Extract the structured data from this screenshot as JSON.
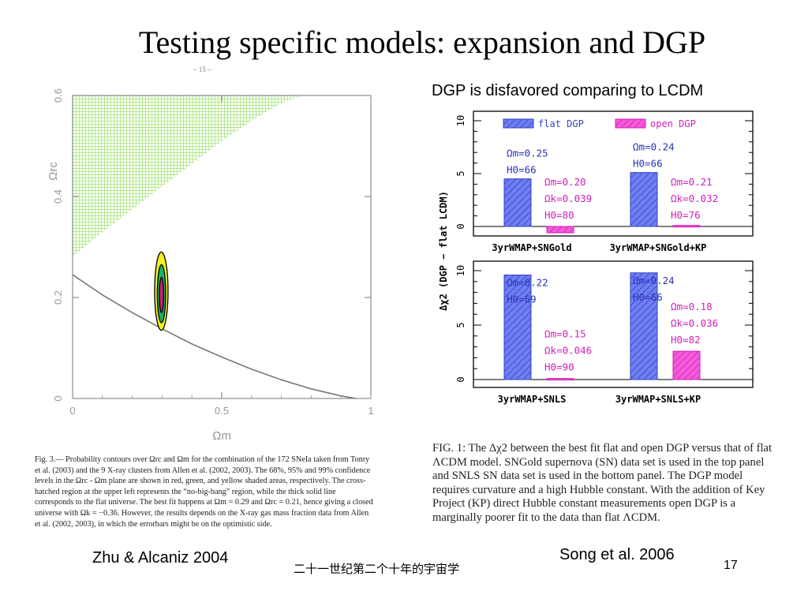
{
  "slide": {
    "title": "Testing specific models: expansion and DGP",
    "page_marker": "– 15 –",
    "subtitle": "DGP is disfavored comparing to LCDM",
    "left_credit": "Zhu & Alcaniz 2004",
    "right_credit": "Song et al. 2006",
    "footer_text": "二十一世纪第二个十年的宇宙学",
    "page_number": "17"
  },
  "left_caption": "Fig. 3.— Probability contours over Ωrc and Ωm for the combination of the 172 SNeIa taken from Tonry et al. (2003) and the 9 X-ray clusters from Allen et al. (2002, 2003). The 68%, 95% and 99% confidence levels in the Ωrc - Ωm plane are shown in red, green, and yellow shaded areas, respectively. The cross-hatched region at the upper left represents the “no-big-bang” region, while the thick solid line corresponds to the flat universe. The best fit happens at Ωm = 0.29 and Ωrc = 0.21, hence giving a closed universe with Ωk = −0.36. However, the results depends on the X-ray gas mass fraction data from Allen et al. (2002, 2003), in which the errorbars might be on the optimistic side.",
  "right_caption": "FIG. 1: The Δχ2 between the best fit flat and open DGP versus that of flat ΛCDM model. SNGold supernova (SN) data set is used in the top panel and SNLS SN data set is used in the bottom panel. The DGP model requires curvature and a high Hubble constant. With the addition of Key Project (KP) direct Hubble constant measurements open DGP is a marginally poorer fit to the data than flat ΛCDM.",
  "colors": {
    "flat_dgp": "#5b6ee8",
    "open_dgp": "#f23ad2",
    "hatch_region": "#9be36b",
    "contour_99": "#f5ee20",
    "contour_95": "#19b36b",
    "contour_68": "#d81b6e",
    "flat_line": "#777777"
  },
  "chart_data": [
    {
      "type": "scatter",
      "xlabel": "Ωm",
      "ylabel": "Ωrc",
      "xlim": [
        0,
        1
      ],
      "ylim": [
        0,
        0.6
      ],
      "xticks": [
        "0",
        "0.5",
        "1"
      ],
      "yticks": [
        "0",
        "0.2",
        "0.4",
        "0.6"
      ],
      "best_fit": {
        "x": 0.29,
        "y": 0.21
      },
      "contours": [
        {
          "name": "99%",
          "x_range": [
            0.275,
            0.32
          ],
          "y_range": [
            0.135,
            0.29
          ]
        },
        {
          "name": "95%",
          "x_range": [
            0.284,
            0.312
          ],
          "y_range": [
            0.15,
            0.265
          ]
        },
        {
          "name": "68%",
          "x_range": [
            0.291,
            0.305
          ],
          "y_range": [
            0.17,
            0.24
          ]
        }
      ],
      "flat_universe_curve": {
        "x": [
          0,
          0.1,
          0.2,
          0.3,
          0.4,
          0.5,
          0.6,
          0.7,
          0.8,
          0.9,
          0.95
        ],
        "y": [
          0.245,
          0.205,
          0.17,
          0.138,
          0.108,
          0.082,
          0.058,
          0.037,
          0.019,
          0.005,
          0.0
        ]
      },
      "no_big_bang_region": {
        "x": [
          0,
          0.1,
          0.2,
          0.3,
          0.4,
          0.5,
          0.6,
          0.7,
          0.77
        ],
        "y_lower": [
          0.28,
          0.33,
          0.375,
          0.42,
          0.465,
          0.51,
          0.55,
          0.585,
          0.6
        ],
        "y_upper": 0.6
      }
    },
    {
      "type": "bar",
      "ylabel": "Δχ2 (DGP − flat LCDM)",
      "ylim": [
        -1,
        10
      ],
      "yticks": [
        "0",
        "5",
        "10"
      ],
      "legend": [
        "flat DGP",
        "open DGP"
      ],
      "legend_position": "top",
      "panels": [
        {
          "categories": [
            "3yrWMAP+SNGold",
            "3yrWMAP+SNGold+KP"
          ],
          "series": [
            {
              "name": "flat DGP",
              "values": [
                4.5,
                5.1
              ],
              "labels": [
                [
                  "Ωm=0.25",
                  "H0=66"
                ],
                [
                  "Ωm=0.24",
                  "H0=66"
                ]
              ]
            },
            {
              "name": "open DGP",
              "values": [
                -0.6,
                0.1
              ],
              "labels": [
                [
                  "Ωm=0.20",
                  "Ωk=0.039",
                  "H0=80"
                ],
                [
                  "Ωm=0.21",
                  "Ωk=0.032",
                  "H0=76"
                ]
              ]
            }
          ]
        },
        {
          "categories": [
            "3yrWMAP+SNLS",
            "3yrWMAP+SNLS+KP"
          ],
          "series": [
            {
              "name": "flat DGP",
              "values": [
                9.6,
                9.8
              ],
              "labels": [
                [
                  "Ωm=0.22",
                  "H0=69"
                ],
                [
                  "Ωm=0.24",
                  "H0=66"
                ]
              ]
            },
            {
              "name": "open DGP",
              "values": [
                0.1,
                2.6
              ],
              "labels": [
                [
                  "Ωm=0.15",
                  "Ωk=0.046",
                  "H0=90"
                ],
                [
                  "Ωm=0.18",
                  "Ωk=0.036",
                  "H0=82"
                ]
              ]
            }
          ]
        }
      ]
    }
  ]
}
